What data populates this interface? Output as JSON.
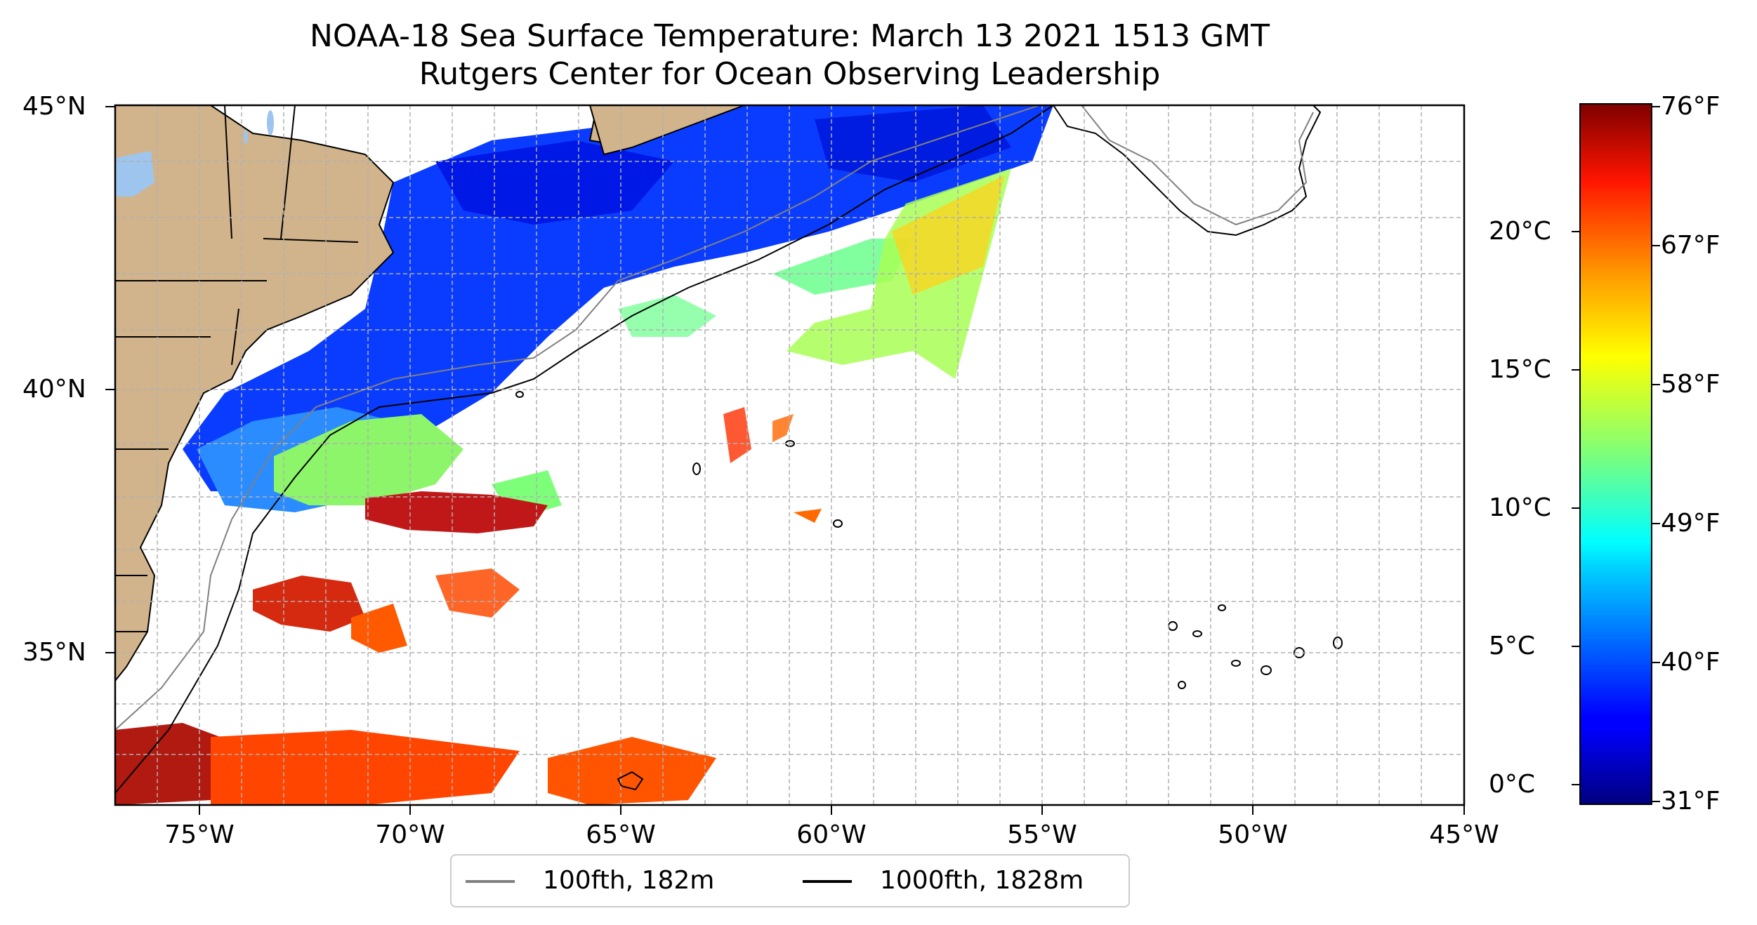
{
  "title": {
    "line1": "NOAA-18 Sea Surface Temperature: March 13 2021 1513 GMT",
    "line2": "Rutgers Center for Ocean Observing Leadership"
  },
  "map": {
    "lon_labels": [
      "75°W",
      "70°W",
      "65°W",
      "60°W",
      "55°W",
      "50°W",
      "45°W"
    ],
    "lat_labels": [
      "45°N",
      "40°N",
      "35°N"
    ],
    "extent": {
      "lon": [
        -77,
        -45
      ],
      "lat": [
        32.5,
        45
      ]
    },
    "colors": {
      "land": "#d2b48c",
      "lakes": "#9ec5ee",
      "ocean_no_data": "#ffffff",
      "isobath_100fth": "#808080",
      "isobath_1000fth": "#000000",
      "grid": "#b0b0b0"
    }
  },
  "colorbar": {
    "celsius_labels": [
      "20°C",
      "15°C",
      "10°C",
      "5°C",
      "0°C"
    ],
    "fahrenheit_labels": [
      "76°F",
      "67°F",
      "58°F",
      "49°F",
      "40°F",
      "31°F"
    ],
    "colormap": "jet",
    "range_f": [
      31,
      76
    ]
  },
  "legend": {
    "items": [
      {
        "label": "100fth, 182m",
        "color": "#808080"
      },
      {
        "label": "1000fth, 1828m",
        "color": "#000000"
      }
    ]
  }
}
